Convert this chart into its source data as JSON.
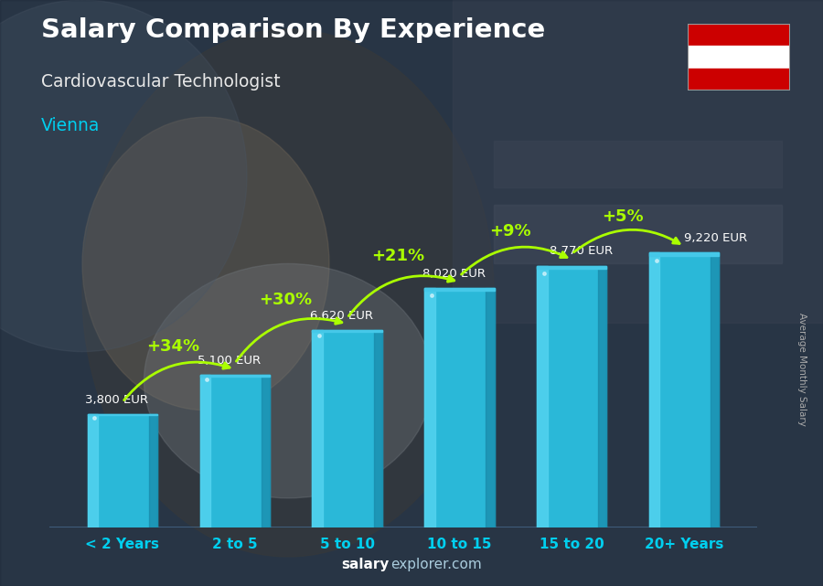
{
  "title": "Salary Comparison By Experience",
  "subtitle1": "Cardiovascular Technologist",
  "subtitle2": "Vienna",
  "categories": [
    "< 2 Years",
    "2 to 5",
    "5 to 10",
    "10 to 15",
    "15 to 20",
    "20+ Years"
  ],
  "values": [
    3800,
    5100,
    6620,
    8020,
    8770,
    9220
  ],
  "labels": [
    "3,800 EUR",
    "5,100 EUR",
    "6,620 EUR",
    "8,020 EUR",
    "8,770 EUR",
    "9,220 EUR"
  ],
  "pct_labels": [
    "+34%",
    "+30%",
    "+21%",
    "+9%",
    "+5%"
  ],
  "bar_color_main": "#2ab8d8",
  "bar_color_light": "#55d4f0",
  "bar_color_dark": "#1888a8",
  "bar_color_top": "#45c8e8",
  "title_color": "#ffffff",
  "subtitle1_color": "#e8e8e8",
  "subtitle2_color": "#00cfef",
  "label_color": "#ffffff",
  "pct_color": "#aaff00",
  "xlabel_color": "#00cfef",
  "watermark_color1": "#ffffff",
  "watermark_color2": "#aaccdd",
  "side_label_color": "#aaaaaa",
  "bg_overlay_color": "#1a2535",
  "bg_overlay_alpha": 0.55,
  "side_label": "Average Monthly Salary",
  "watermark_bold": "salary",
  "watermark_light": "explorer.com",
  "ylim": [
    0,
    10800
  ],
  "xlim_left": -0.65,
  "xlim_right": 5.65,
  "bar_width": 0.62,
  "figsize": [
    9.0,
    6.41
  ],
  "dpi": 100,
  "flag_red": "#cc0000",
  "flag_white": "#ffffff"
}
